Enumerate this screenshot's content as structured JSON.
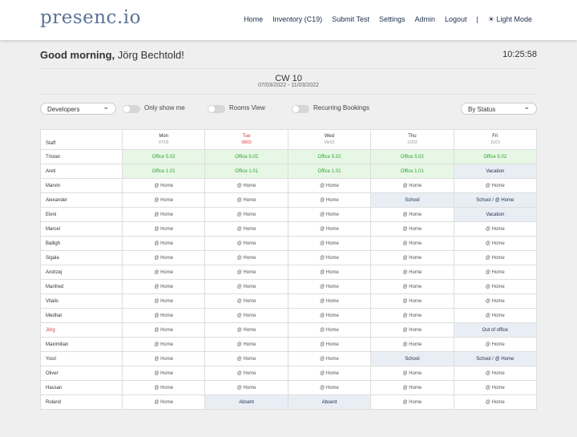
{
  "header": {
    "logo": "presenc.io",
    "nav": [
      "Home",
      "Inventory (C19)",
      "Submit Test",
      "Settings",
      "Admin",
      "Logout",
      "|",
      "☀ Light Mode"
    ]
  },
  "greeting": {
    "salutation": "Good morning,",
    "name": "Jörg Bechtold!"
  },
  "clock": "10:25:58",
  "week": {
    "label": "CW 10",
    "range": "07/03/2022 - 11/03/2022"
  },
  "filters": {
    "team": "Developers",
    "only_me": "Only show me",
    "rooms_view": "Rooms View",
    "recurring": "Recurring Bookings",
    "sort": "By Status"
  },
  "table": {
    "staff_header": "Staff",
    "days": [
      {
        "name": "Mon",
        "date": "07/03"
      },
      {
        "name": "Tue",
        "date": "08/03"
      },
      {
        "name": "Wed",
        "date": "09/03"
      },
      {
        "name": "Thu",
        "date": "10/03"
      },
      {
        "name": "Fri",
        "date": "11/03"
      }
    ],
    "rows": [
      {
        "name": "Tristan",
        "cells": [
          "Office 5.02",
          "Office 5.02",
          "Office 5.02",
          "Office 5.02",
          "Office 5.02"
        ]
      },
      {
        "name": "Areti",
        "cells": [
          "Office 1.01",
          "Office 1.01",
          "Office 1.01",
          "Office 1.01",
          "Vacation"
        ]
      },
      {
        "name": "Marvin",
        "cells": [
          "@ Home",
          "@ Home",
          "@ Home",
          "@ Home",
          "@ Home"
        ]
      },
      {
        "name": "Alexander",
        "cells": [
          "@ Home",
          "@ Home",
          "@ Home",
          "School",
          "School / @ Home"
        ]
      },
      {
        "name": "Eleni",
        "cells": [
          "@ Home",
          "@ Home",
          "@ Home",
          "@ Home",
          "Vacation"
        ]
      },
      {
        "name": "Marcel",
        "cells": [
          "@ Home",
          "@ Home",
          "@ Home",
          "@ Home",
          "@ Home"
        ]
      },
      {
        "name": "Balligh",
        "cells": [
          "@ Home",
          "@ Home",
          "@ Home",
          "@ Home",
          "@ Home"
        ]
      },
      {
        "name": "Sigala",
        "cells": [
          "@ Home",
          "@ Home",
          "@ Home",
          "@ Home",
          "@ Home"
        ]
      },
      {
        "name": "Andrzej",
        "cells": [
          "@ Home",
          "@ Home",
          "@ Home",
          "@ Home",
          "@ Home"
        ]
      },
      {
        "name": "Manfred",
        "cells": [
          "@ Home",
          "@ Home",
          "@ Home",
          "@ Home",
          "@ Home"
        ]
      },
      {
        "name": "Vitalis",
        "cells": [
          "@ Home",
          "@ Home",
          "@ Home",
          "@ Home",
          "@ Home"
        ]
      },
      {
        "name": "Medhat",
        "cells": [
          "@ Home",
          "@ Home",
          "@ Home",
          "@ Home",
          "@ Home"
        ]
      },
      {
        "name": "Jörg",
        "cells": [
          "@ Home",
          "@ Home",
          "@ Home",
          "@ Home",
          "Out of office"
        ]
      },
      {
        "name": "Maximilian",
        "cells": [
          "@ Home",
          "@ Home",
          "@ Home",
          "@ Home",
          "@ Home"
        ]
      },
      {
        "name": "Yosri",
        "cells": [
          "@ Home",
          "@ Home",
          "@ Home",
          "School",
          "School / @ Home"
        ]
      },
      {
        "name": "Oliver",
        "cells": [
          "@ Home",
          "@ Home",
          "@ Home",
          "@ Home",
          "@ Home"
        ]
      },
      {
        "name": "Hassan",
        "cells": [
          "@ Home",
          "@ Home",
          "@ Home",
          "@ Home",
          "@ Home"
        ]
      },
      {
        "name": "Roland",
        "cells": [
          "@ Home",
          "Absent",
          "Absent",
          "@ Home",
          "@ Home"
        ]
      }
    ]
  }
}
